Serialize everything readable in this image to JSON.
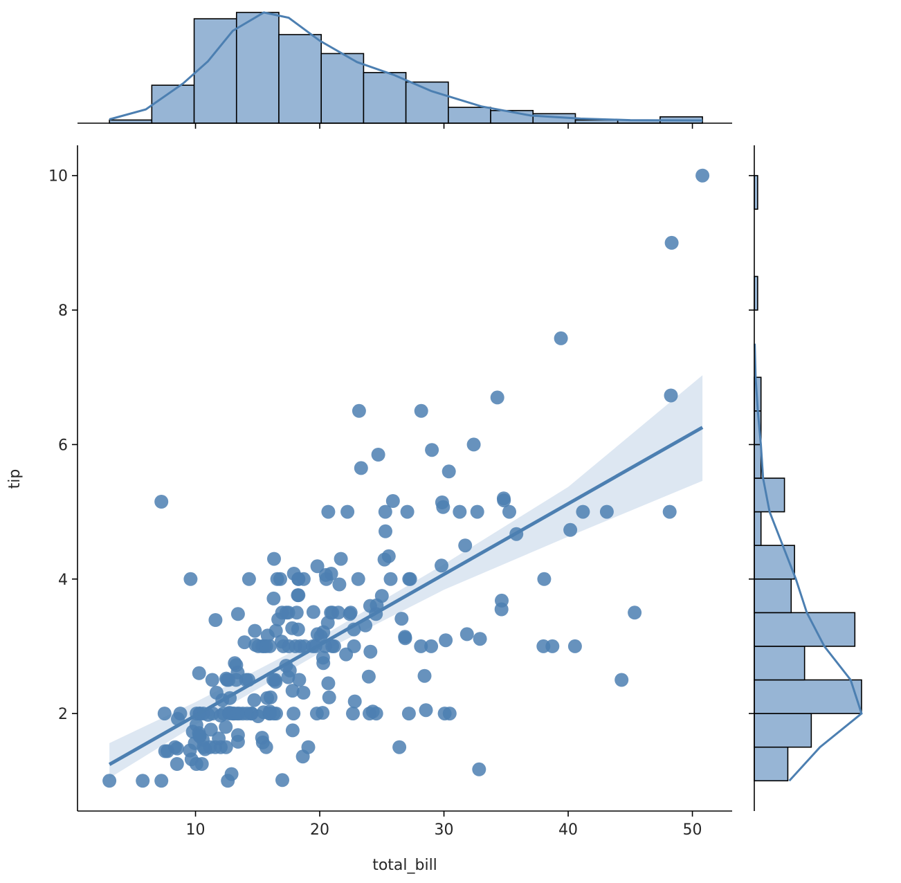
{
  "chart_data": {
    "type": "scatter",
    "kind": "jointplot-reg",
    "xlabel": "total_bill",
    "ylabel": "tip",
    "color": "#4c7fb1",
    "band_color": "#dbe6f1",
    "hist_fill": "#97b5d5",
    "xlim": [
      0.5,
      53.2
    ],
    "ylim": [
      0.55,
      10.45
    ],
    "xticks": [
      10,
      20,
      30,
      40,
      50
    ],
    "yticks": [
      2,
      4,
      6,
      8,
      10
    ],
    "points": [
      [
        3.07,
        1.0
      ],
      [
        5.75,
        1.0
      ],
      [
        7.25,
        1.0
      ],
      [
        7.25,
        5.15
      ],
      [
        7.51,
        2.0
      ],
      [
        7.56,
        1.44
      ],
      [
        7.74,
        1.44
      ],
      [
        8.35,
        1.5
      ],
      [
        8.51,
        1.25
      ],
      [
        8.52,
        1.48
      ],
      [
        8.58,
        1.92
      ],
      [
        8.77,
        2.0
      ],
      [
        9.55,
        1.45
      ],
      [
        9.6,
        4.0
      ],
      [
        9.68,
        1.32
      ],
      [
        9.78,
        1.73
      ],
      [
        9.94,
        1.56
      ],
      [
        10.07,
        1.83
      ],
      [
        10.07,
        1.25
      ],
      [
        10.09,
        2.0
      ],
      [
        10.27,
        1.71
      ],
      [
        10.29,
        2.6
      ],
      [
        10.33,
        1.67
      ],
      [
        10.33,
        2.0
      ],
      [
        10.34,
        1.66
      ],
      [
        10.34,
        2.0
      ],
      [
        10.51,
        1.25
      ],
      [
        10.59,
        1.61
      ],
      [
        10.63,
        2.0
      ],
      [
        10.65,
        1.5
      ],
      [
        10.77,
        1.47
      ],
      [
        11.02,
        1.98
      ],
      [
        11.17,
        1.5
      ],
      [
        11.24,
        1.76
      ],
      [
        11.35,
        2.5
      ],
      [
        11.38,
        2.0
      ],
      [
        11.59,
        1.5
      ],
      [
        11.61,
        3.39
      ],
      [
        11.69,
        2.31
      ],
      [
        11.87,
        1.63
      ],
      [
        12.02,
        1.97
      ],
      [
        12.03,
        1.5
      ],
      [
        12.16,
        2.2
      ],
      [
        12.26,
        2.0
      ],
      [
        12.43,
        1.8
      ],
      [
        12.46,
        1.5
      ],
      [
        12.48,
        2.52
      ],
      [
        12.54,
        2.5
      ],
      [
        12.6,
        1.0
      ],
      [
        12.66,
        2.5
      ],
      [
        12.69,
        2.0
      ],
      [
        12.74,
        2.01
      ],
      [
        12.76,
        2.23
      ],
      [
        12.9,
        1.1
      ],
      [
        13.0,
        2.0
      ],
      [
        13.03,
        2.0
      ],
      [
        13.13,
        2.0
      ],
      [
        13.16,
        2.75
      ],
      [
        13.27,
        2.5
      ],
      [
        13.28,
        2.72
      ],
      [
        13.37,
        2.0
      ],
      [
        13.39,
        2.61
      ],
      [
        13.42,
        3.48
      ],
      [
        13.42,
        1.68
      ],
      [
        13.42,
        1.58
      ],
      [
        13.51,
        2.0
      ],
      [
        13.81,
        2.0
      ],
      [
        13.94,
        3.06
      ],
      [
        14.07,
        2.5
      ],
      [
        14.15,
        2.0
      ],
      [
        14.26,
        2.5
      ],
      [
        14.31,
        4.0
      ],
      [
        14.48,
        2.0
      ],
      [
        14.52,
        2.0
      ],
      [
        14.73,
        2.2
      ],
      [
        14.78,
        3.23
      ],
      [
        14.83,
        3.02
      ],
      [
        15.04,
        1.96
      ],
      [
        15.06,
        3.0
      ],
      [
        15.36,
        1.64
      ],
      [
        15.38,
        3.0
      ],
      [
        15.42,
        1.57
      ],
      [
        15.48,
        2.02
      ],
      [
        15.53,
        3.0
      ],
      [
        15.69,
        1.5
      ],
      [
        15.69,
        3.0
      ],
      [
        15.77,
        2.23
      ],
      [
        15.81,
        3.16
      ],
      [
        15.95,
        2.0
      ],
      [
        15.98,
        2.03
      ],
      [
        15.98,
        3.0
      ],
      [
        16.0,
        2.0
      ],
      [
        16.04,
        2.24
      ],
      [
        16.27,
        2.5
      ],
      [
        16.29,
        3.71
      ],
      [
        16.31,
        2.0
      ],
      [
        16.32,
        4.3
      ],
      [
        16.4,
        2.5
      ],
      [
        16.45,
        2.47
      ],
      [
        16.47,
        3.23
      ],
      [
        16.49,
        2.0
      ],
      [
        16.58,
        4.0
      ],
      [
        16.66,
        3.4
      ],
      [
        16.82,
        4.0
      ],
      [
        16.93,
        3.07
      ],
      [
        16.97,
        3.5
      ],
      [
        16.99,
        1.01
      ],
      [
        17.07,
        3.0
      ],
      [
        17.29,
        2.71
      ],
      [
        17.31,
        3.5
      ],
      [
        17.46,
        2.54
      ],
      [
        17.47,
        3.5
      ],
      [
        17.51,
        3.0
      ],
      [
        17.59,
        2.64
      ],
      [
        17.78,
        3.27
      ],
      [
        17.81,
        2.34
      ],
      [
        17.82,
        1.75
      ],
      [
        17.89,
        2.0
      ],
      [
        17.92,
        4.08
      ],
      [
        18.04,
        3.0
      ],
      [
        18.15,
        3.5
      ],
      [
        18.24,
        3.76
      ],
      [
        18.26,
        3.25
      ],
      [
        18.28,
        4.0
      ],
      [
        18.29,
        3.76
      ],
      [
        18.29,
        4.0
      ],
      [
        18.35,
        2.5
      ],
      [
        18.43,
        3.0
      ],
      [
        18.64,
        1.36
      ],
      [
        18.69,
        2.31
      ],
      [
        18.71,
        4.0
      ],
      [
        18.78,
        3.0
      ],
      [
        19.08,
        1.5
      ],
      [
        19.44,
        3.0
      ],
      [
        19.49,
        3.51
      ],
      [
        19.65,
        3.0
      ],
      [
        19.77,
        2.0
      ],
      [
        19.81,
        4.19
      ],
      [
        19.82,
        3.18
      ],
      [
        20.08,
        3.15
      ],
      [
        20.23,
        2.01
      ],
      [
        20.27,
        2.83
      ],
      [
        20.29,
        2.75
      ],
      [
        20.29,
        3.21
      ],
      [
        20.45,
        3.0
      ],
      [
        20.49,
        4.06
      ],
      [
        20.53,
        4.0
      ],
      [
        20.65,
        3.35
      ],
      [
        20.69,
        2.45
      ],
      [
        20.69,
        5.0
      ],
      [
        20.76,
        2.24
      ],
      [
        20.9,
        3.5
      ],
      [
        20.92,
        4.08
      ],
      [
        21.01,
        3.5
      ],
      [
        21.01,
        3.0
      ],
      [
        21.16,
        3.0
      ],
      [
        21.5,
        3.5
      ],
      [
        21.58,
        3.92
      ],
      [
        21.7,
        4.3
      ],
      [
        22.12,
        2.88
      ],
      [
        22.23,
        5.0
      ],
      [
        22.42,
        3.48
      ],
      [
        22.49,
        3.5
      ],
      [
        22.67,
        2.0
      ],
      [
        22.75,
        3.25
      ],
      [
        22.76,
        3.0
      ],
      [
        22.82,
        2.18
      ],
      [
        23.1,
        4.0
      ],
      [
        23.17,
        6.5
      ],
      [
        23.33,
        5.65
      ],
      [
        23.68,
        3.31
      ],
      [
        23.95,
        2.55
      ],
      [
        24.01,
        2.0
      ],
      [
        24.06,
        3.6
      ],
      [
        24.08,
        2.92
      ],
      [
        24.27,
        2.03
      ],
      [
        24.52,
        3.48
      ],
      [
        24.55,
        2.0
      ],
      [
        24.59,
        3.61
      ],
      [
        24.71,
        5.85
      ],
      [
        25.0,
        3.75
      ],
      [
        25.21,
        4.29
      ],
      [
        25.28,
        5.0
      ],
      [
        25.29,
        4.71
      ],
      [
        25.56,
        4.34
      ],
      [
        25.71,
        4.0
      ],
      [
        25.89,
        5.16
      ],
      [
        26.41,
        1.5
      ],
      [
        26.59,
        3.41
      ],
      [
        26.86,
        3.14
      ],
      [
        26.88,
        3.12
      ],
      [
        27.05,
        5.0
      ],
      [
        27.18,
        2.0
      ],
      [
        27.2,
        4.0
      ],
      [
        27.28,
        4.0
      ],
      [
        28.15,
        3.0
      ],
      [
        28.17,
        6.5
      ],
      [
        28.44,
        2.56
      ],
      [
        28.55,
        2.05
      ],
      [
        28.97,
        3.0
      ],
      [
        29.03,
        5.92
      ],
      [
        29.8,
        4.2
      ],
      [
        29.85,
        5.14
      ],
      [
        29.93,
        5.07
      ],
      [
        30.06,
        2.0
      ],
      [
        30.14,
        3.09
      ],
      [
        30.4,
        5.6
      ],
      [
        30.46,
        2.0
      ],
      [
        31.27,
        5.0
      ],
      [
        31.71,
        4.5
      ],
      [
        31.85,
        3.18
      ],
      [
        32.4,
        6.0
      ],
      [
        32.68,
        5.0
      ],
      [
        32.83,
        1.17
      ],
      [
        32.9,
        3.11
      ],
      [
        34.3,
        6.7
      ],
      [
        34.63,
        3.55
      ],
      [
        34.65,
        3.68
      ],
      [
        34.81,
        5.2
      ],
      [
        34.83,
        5.17
      ],
      [
        35.26,
        5.0
      ],
      [
        35.83,
        4.67
      ],
      [
        38.01,
        3.0
      ],
      [
        38.07,
        4.0
      ],
      [
        38.73,
        3.0
      ],
      [
        39.42,
        7.58
      ],
      [
        40.17,
        4.73
      ],
      [
        40.55,
        3.0
      ],
      [
        41.19,
        5.0
      ],
      [
        43.11,
        5.0
      ],
      [
        44.3,
        2.5
      ],
      [
        45.35,
        3.5
      ],
      [
        48.17,
        5.0
      ],
      [
        48.27,
        6.73
      ],
      [
        48.33,
        9.0
      ],
      [
        50.81,
        10.0
      ]
    ],
    "regression": {
      "x_range": [
        3.07,
        50.81
      ],
      "intercept": 0.92,
      "slope": 0.105,
      "ci_lower": [
        [
          3.07,
          1.04
        ],
        [
          10,
          1.83
        ],
        [
          20,
          2.9
        ],
        [
          30,
          3.84
        ],
        [
          40,
          4.63
        ],
        [
          50.81,
          5.46
        ]
      ],
      "ci_upper": [
        [
          3.07,
          1.56
        ],
        [
          10,
          2.17
        ],
        [
          20,
          3.13
        ],
        [
          30,
          4.22
        ],
        [
          40,
          5.37
        ],
        [
          50.81,
          7.03
        ]
      ]
    },
    "marginal_x_hist": {
      "bin_edges": [
        3.07,
        6.48,
        9.89,
        13.3,
        16.71,
        20.12,
        23.53,
        26.94,
        30.35,
        33.76,
        37.17,
        40.58,
        43.99,
        47.4,
        50.81
      ],
      "counts": [
        1,
        12,
        33,
        35,
        28,
        22,
        16,
        13,
        5,
        4,
        3,
        1,
        1,
        2
      ],
      "kde": [
        [
          3.07,
          0.5
        ],
        [
          6,
          1.8
        ],
        [
          9,
          5.2
        ],
        [
          11,
          8.1
        ],
        [
          13,
          12.1
        ],
        [
          15.5,
          14.5
        ],
        [
          17.5,
          13.8
        ],
        [
          20,
          10.8
        ],
        [
          23,
          8.0
        ],
        [
          26,
          6.3
        ],
        [
          29,
          4.2
        ],
        [
          33,
          2.2
        ],
        [
          37,
          1.0
        ],
        [
          41,
          0.6
        ],
        [
          45,
          0.4
        ],
        [
          50.81,
          0.35
        ]
      ]
    },
    "marginal_y_hist": {
      "bin_edges": [
        1.0,
        1.5,
        2.0,
        2.5,
        3.0,
        3.5,
        4.0,
        4.5,
        5.0,
        5.5,
        6.0,
        6.5,
        7.0,
        7.5,
        8.0,
        8.5,
        9.0,
        9.5,
        10.0
      ],
      "counts": [
        10,
        17,
        32,
        15,
        30,
        11,
        12,
        2,
        9,
        2,
        2,
        2,
        0,
        0,
        1,
        0,
        0,
        1
      ],
      "kde": [
        [
          1.0,
          8
        ],
        [
          1.5,
          15
        ],
        [
          2.0,
          24.5
        ],
        [
          2.5,
          22
        ],
        [
          3.0,
          16
        ],
        [
          3.5,
          12
        ],
        [
          4.0,
          9.5
        ],
        [
          4.5,
          6.5
        ],
        [
          5.0,
          3.5
        ],
        [
          5.5,
          2.0
        ],
        [
          6.0,
          1.5
        ],
        [
          6.5,
          0.8
        ],
        [
          7.0,
          0.3
        ],
        [
          7.5,
          0.1
        ]
      ]
    }
  }
}
